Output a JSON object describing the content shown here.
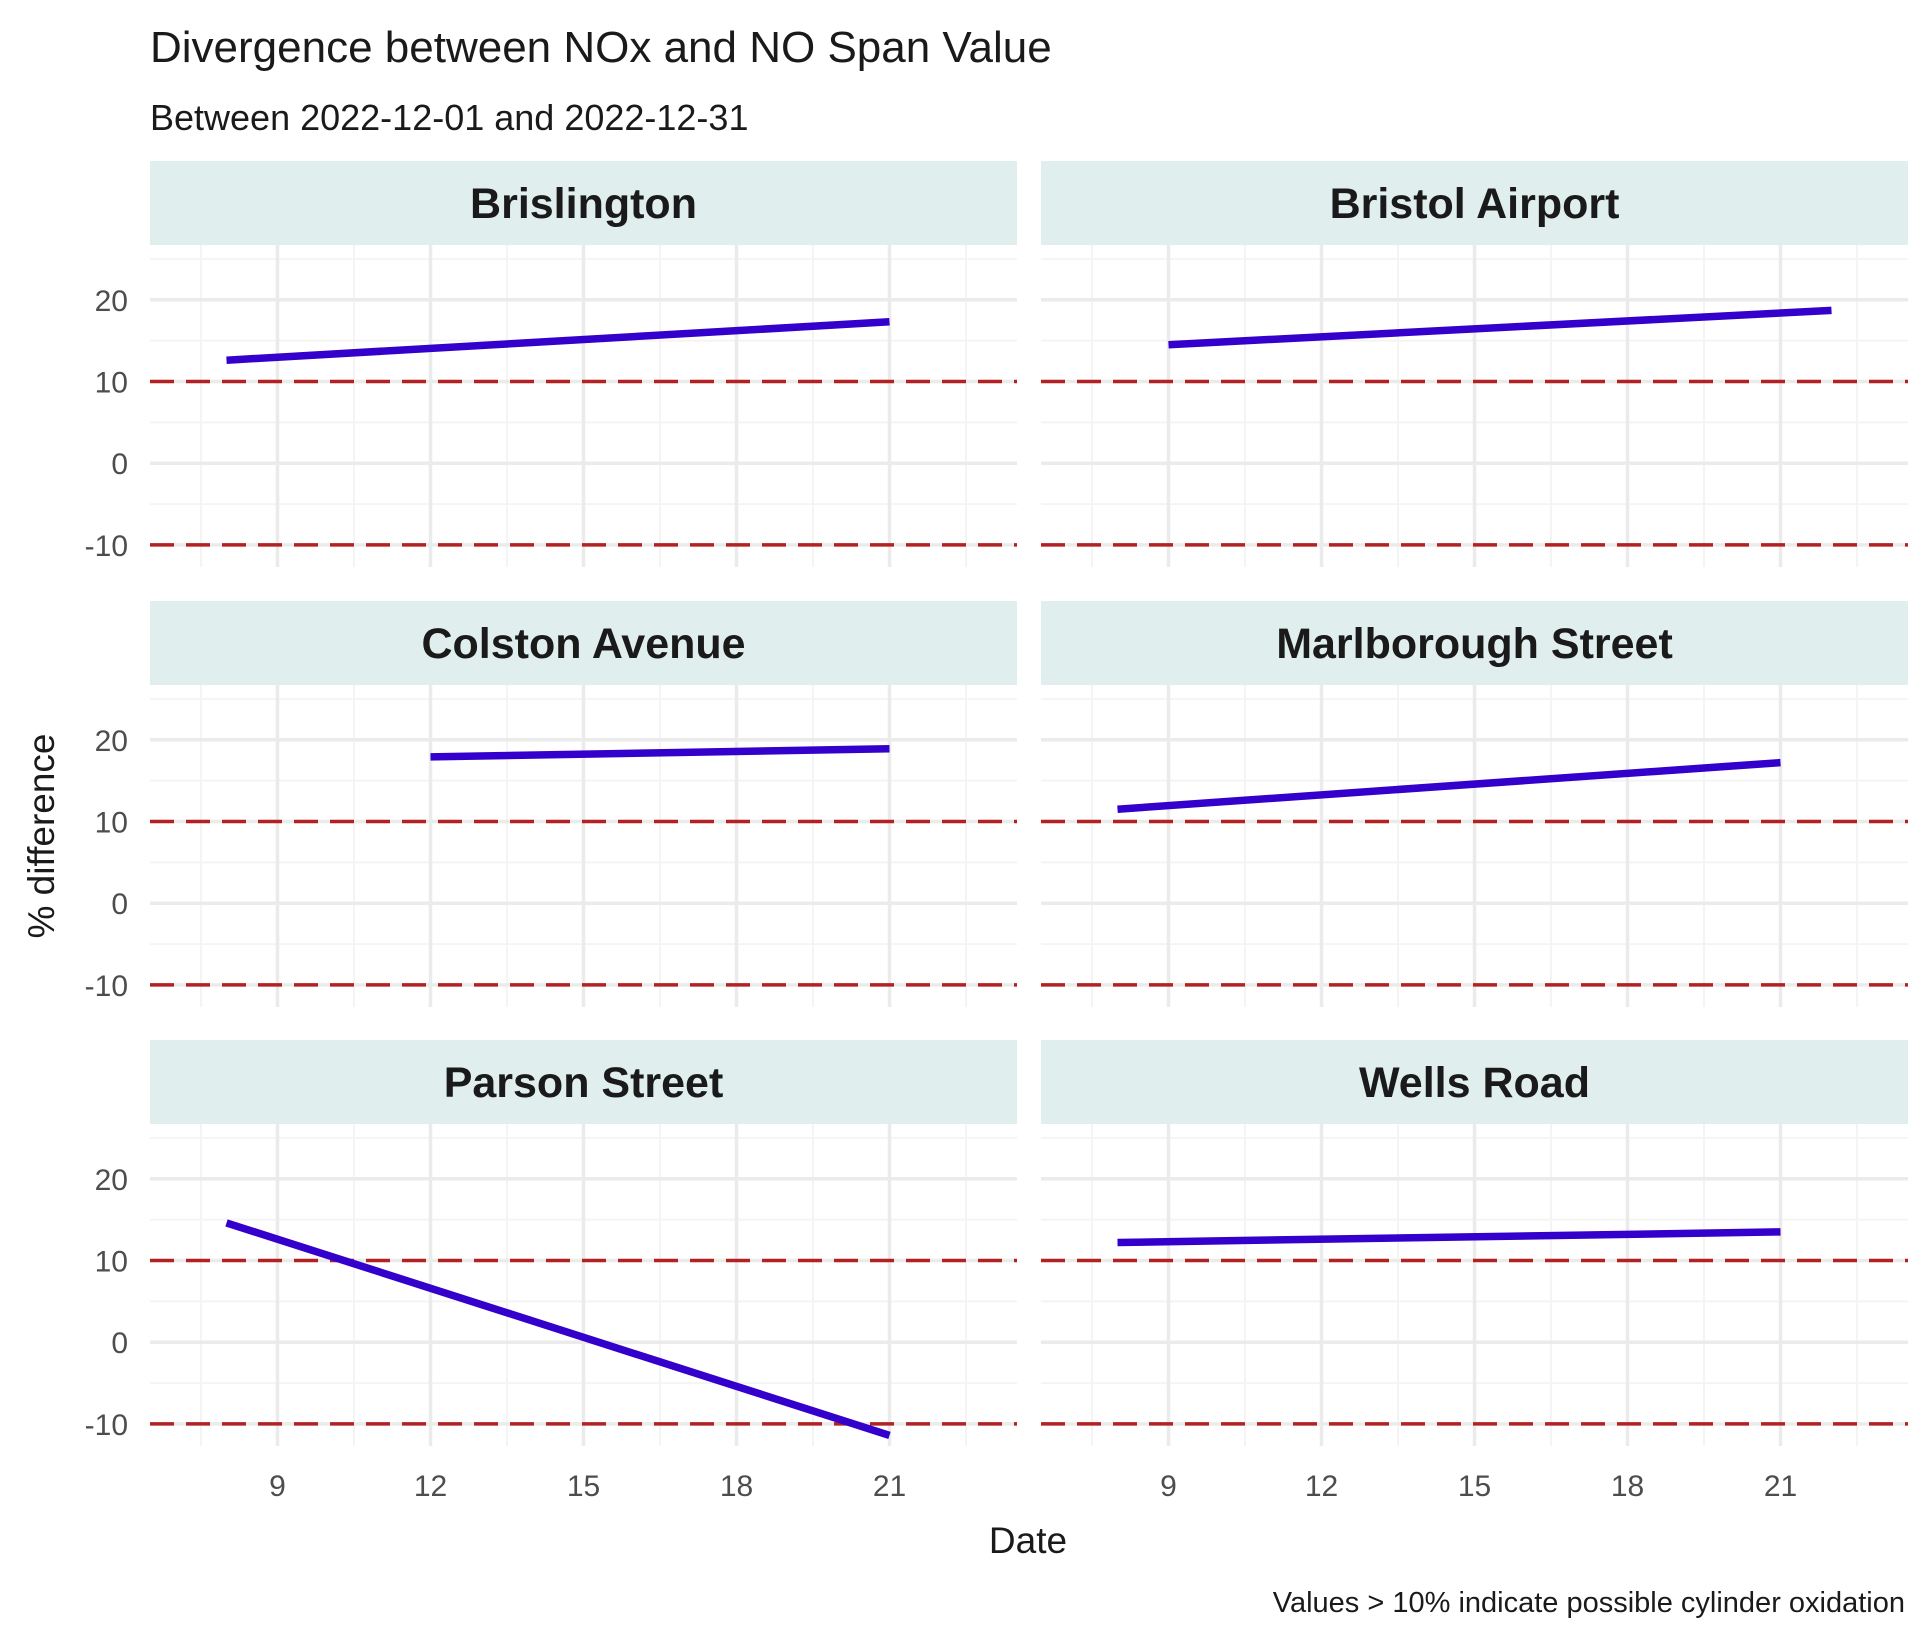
{
  "chart_data": {
    "type": "line",
    "title": "Divergence between NOx and NO Span Value",
    "subtitle": "Between 2022-12-01 and 2022-12-31",
    "xlabel": "Date",
    "ylabel": "% difference",
    "caption": "Values > 10% indicate possible cylinder oxidation",
    "x_ticks": [
      9,
      12,
      15,
      18,
      21
    ],
    "y_ticks": [
      -10,
      0,
      10,
      20
    ],
    "xlim": [
      6.5,
      23.5
    ],
    "ylim": [
      -12.7,
      26.7
    ],
    "grid": true,
    "reference_lines": [
      10,
      -10
    ],
    "colors": {
      "line": "#3300cc",
      "threshold": "#b22222",
      "strip_bg": "#e0eeee",
      "grid_major": "#ebebeb",
      "grid_minor": "#f4f4f4"
    },
    "panels": [
      {
        "name": "Brislington",
        "x": [
          8,
          21
        ],
        "y": [
          12.6,
          17.3
        ]
      },
      {
        "name": "Bristol Airport",
        "x": [
          9,
          22
        ],
        "y": [
          14.5,
          18.7
        ]
      },
      {
        "name": "Colston Avenue",
        "x": [
          12,
          21
        ],
        "y": [
          17.9,
          18.9
        ]
      },
      {
        "name": "Marlborough Street",
        "x": [
          8,
          21
        ],
        "y": [
          11.5,
          17.2
        ]
      },
      {
        "name": "Parson Street",
        "x": [
          8,
          21
        ],
        "y": [
          14.6,
          -11.4
        ]
      },
      {
        "name": "Wells Road",
        "x": [
          8,
          21
        ],
        "y": [
          12.2,
          13.5
        ]
      }
    ]
  }
}
